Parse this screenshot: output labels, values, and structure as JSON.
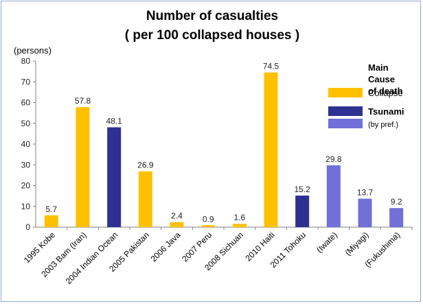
{
  "chart_data": {
    "type": "bar",
    "title_line1": "Number of casualties",
    "title_line2": "( per 100 collapsed houses )",
    "unit_label": "(persons)",
    "ylim": [
      0,
      80
    ],
    "yticks": [
      0,
      10,
      20,
      30,
      40,
      50,
      60,
      70,
      80
    ],
    "grid": false,
    "categories": [
      "1995 Kobe",
      "2003 Bam (Iran)",
      "2004 Indian Ocean",
      "2005 Pakistan",
      "2006 Java",
      "2007 Peru",
      "2008 Sichuan",
      "2010 Haiti",
      "2011 Tohoku",
      "(Iwate)",
      "(Miyagi)",
      "(Fukushima)"
    ],
    "values": [
      5.7,
      57.8,
      48.1,
      26.9,
      2.4,
      0.9,
      1.6,
      74.5,
      15.2,
      29.8,
      13.7,
      9.2
    ],
    "value_labels": [
      "5.7",
      "57.8",
      "48.1",
      "26.9",
      "2.4",
      "0.9",
      "1.6",
      "74.5",
      "15.2",
      "29.8",
      "13.7",
      "9.2"
    ],
    "bar_cause": [
      "collapse",
      "collapse",
      "tsunami",
      "collapse",
      "collapse",
      "collapse",
      "collapse",
      "collapse",
      "tsunami",
      "pref",
      "pref",
      "pref"
    ],
    "legend": {
      "placement": "top-right",
      "title_lines": [
        "Main",
        "Cause",
        "of death"
      ],
      "items": [
        {
          "key": "collapse",
          "label": "Collapse",
          "sub": "",
          "color": "#ffc000"
        },
        {
          "key": "tsunami",
          "label": "Tsunami",
          "sub": "",
          "color": "#2e3192"
        },
        {
          "key": "pref",
          "label": "",
          "sub": "(by pref.)",
          "color": "#7070d8"
        }
      ]
    },
    "colors": {
      "collapse": "#ffc000",
      "tsunami": "#2e3192",
      "pref": "#7070d8",
      "axis": "#7f7f7f"
    }
  }
}
